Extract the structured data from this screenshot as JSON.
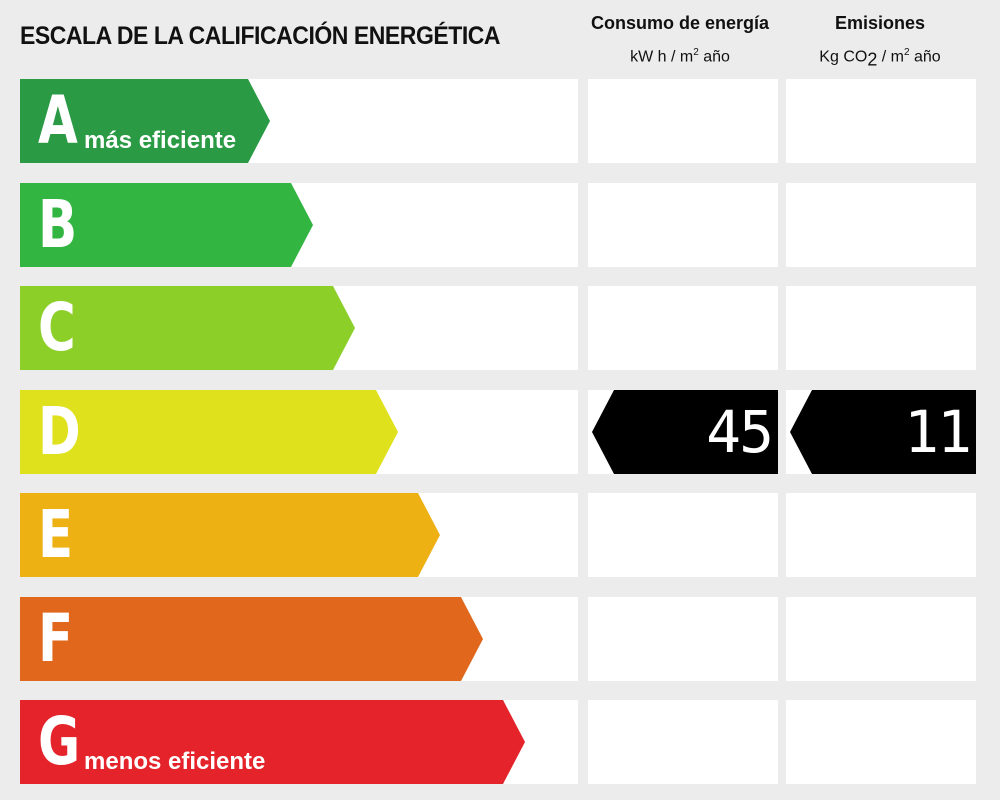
{
  "header": {
    "title": "ESCALA DE LA CALIFICACIÓN ENERGÉTICA",
    "energy_col": {
      "label": "Consumo de energía",
      "unit_pre": "kW h / m",
      "unit_sup": "2",
      "unit_post": " año"
    },
    "emissions_col": {
      "label": "Emisiones",
      "unit_pre": "Kg CO",
      "unit_sub": "2",
      "unit_mid": " / m",
      "unit_sup": "2",
      "unit_post": "  año"
    }
  },
  "ratings": [
    {
      "letter": "A",
      "note": "más eficiente",
      "color": "#2a9a45"
    },
    {
      "letter": "B",
      "note": "",
      "color": "#33b542"
    },
    {
      "letter": "C",
      "note": "",
      "color": "#8ccf29"
    },
    {
      "letter": "D",
      "note": "",
      "color": "#dfe11c"
    },
    {
      "letter": "E",
      "note": "",
      "color": "#eeb114"
    },
    {
      "letter": "F",
      "note": "",
      "color": "#e0671b"
    },
    {
      "letter": "G",
      "note": "menos eficiente",
      "color": "#e4232b"
    }
  ],
  "current": {
    "letter": "D",
    "energy": "45",
    "emissions": "11",
    "indicator_color": "#000000"
  }
}
